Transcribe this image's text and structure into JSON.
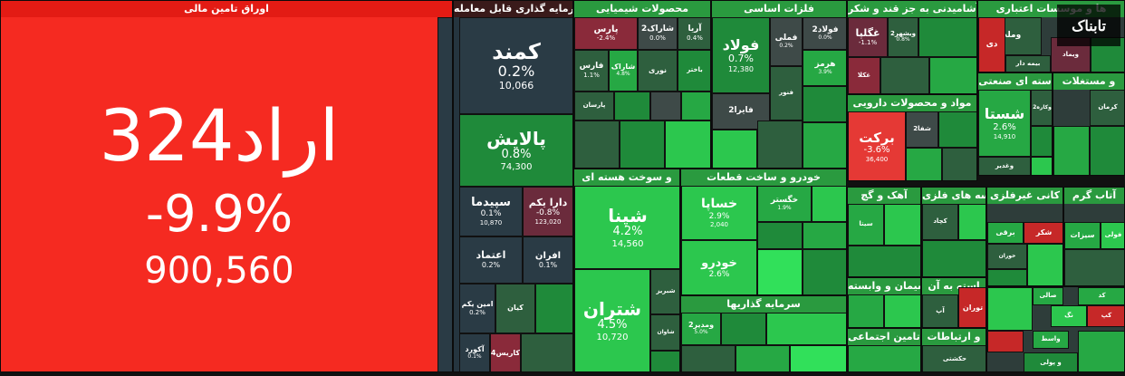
{
  "sectors": {
    "s1": "اوراق تامین مالی",
    "s2": "سرمایه گذاری قابل معامله",
    "s3": "محصولات شیمیایی",
    "s4": "فلزات اساسی",
    "s5": "آشامیدنی به جز قند و شکر",
    "s6": "ها و موسسات اعتباری",
    "s7": "و مستغلات",
    "s8": "سته ای صنعتی",
    "s9": "مواد و محصولات دارویی",
    "s10": "و سوخت هسته ای",
    "s11": "خودرو و ساخت قطعات",
    "s12": "آهک و گچ",
    "s13": "سه های فلزی",
    "s14": "کانی غیرفلزی",
    "s15": "سرمایه گذاریها",
    "s16": "سیمان و وابسته",
    "s17": "استه به آن",
    "s18": "تامین اجتماعی",
    "s19": "و ارتباطات"
  },
  "tiles": {
    "arad": {
      "sym": "اراد324",
      "pct": "-9.9%",
      "val": "900,560"
    },
    "kamand": {
      "sym": "کمند",
      "pct": "0.2%",
      "val": "10,066"
    },
    "palayesh": {
      "sym": "پالایش",
      "pct": "0.8%",
      "val": "74,300"
    },
    "sepidma": {
      "sym": "سپیدما",
      "pct": "0.1%",
      "val": "10,870"
    },
    "darayekom": {
      "sym": "دارا یکم",
      "pct": "-0.8%",
      "val": "123,020"
    },
    "etemad": {
      "sym": "اعتماد",
      "pct": "0.2%"
    },
    "afran": {
      "sym": "افران",
      "pct": "0.1%"
    },
    "aminyekom": {
      "sym": "امین یکم",
      "pct": "0.2%"
    },
    "kian": {
      "sym": "کیان"
    },
    "akord": {
      "sym": "آکورد",
      "pct": "0.1%"
    },
    "karis": {
      "sym": "کاریس4"
    },
    "pars": {
      "sym": "پارس",
      "pct": "-2.4%"
    },
    "sharak2": {
      "sym": "شاراک2",
      "pct": "0.0%"
    },
    "aria": {
      "sym": "آریا",
      "pct": "0.4%"
    },
    "fars": {
      "sym": "فارس",
      "pct": "1.1%"
    },
    "sharak": {
      "sym": "شاراک",
      "pct": "4.8%"
    },
    "noori": {
      "sym": "نوری"
    },
    "bakhter": {
      "sym": "باختر"
    },
    "parsan": {
      "sym": "پارسان"
    },
    "foolad": {
      "sym": "فولاد",
      "pct": "0.7%",
      "val": "12,380"
    },
    "fameli": {
      "sym": "فملی",
      "pct": "0.2%"
    },
    "foolad2": {
      "sym": "فولاد2",
      "pct": "0.0%"
    },
    "hormoz": {
      "sym": "هرمز",
      "pct": "3.9%"
    },
    "fanvar": {
      "sym": "فنور"
    },
    "fayra2": {
      "sym": "فایرا2"
    },
    "ghgolpa": {
      "sym": "غگلپا",
      "pct": "-1.1%"
    },
    "vibshahr": {
      "sym": "ویشهر2",
      "pct": "0.8%"
    },
    "ghkola": {
      "sym": "غکلا"
    },
    "vmelat": {
      "sym": "وملت"
    },
    "dey": {
      "sym": "دی"
    },
    "vimad": {
      "sym": "ویماد"
    },
    "bimedar": {
      "sym": "بیمه دار"
    },
    "vsapa": {
      "sym": "وساپا"
    },
    "shasta": {
      "sym": "شستا",
      "pct": "2.6%",
      "val": "14,910"
    },
    "vkharazm": {
      "sym": "وکاره2"
    },
    "kerman": {
      "sym": "کرمان"
    },
    "vghadir": {
      "sym": "وغدیر"
    },
    "barekat": {
      "sym": "برکت",
      "pct": "-3.6%",
      "val": "36,400"
    },
    "shafa": {
      "sym": "شفا2"
    },
    "shepna": {
      "sym": "شپنا",
      "pct": "4.2%",
      "val": "14,560"
    },
    "shetran": {
      "sym": "شتران",
      "pct": "4.5%",
      "val": "10,720"
    },
    "shabriz": {
      "sym": "شبریز"
    },
    "shavan": {
      "sym": "شاوان"
    },
    "khesapa": {
      "sym": "خساپا",
      "pct": "2.9%",
      "val": "2,040"
    },
    "khgostar": {
      "sym": "خگستر",
      "pct": "1.9%"
    },
    "khodro": {
      "sym": "خودرو",
      "pct": "2.6%"
    },
    "vmadyar": {
      "sym": "ومدیر2",
      "pct": "5.0%"
    },
    "sita": {
      "sym": "سیتا"
    },
    "kchad": {
      "sym": "کچاد"
    },
    "shakar": {
      "sym": "شکر"
    },
    "barqi": {
      "sym": "برقی"
    },
    "khoran": {
      "sym": "خوران"
    },
    "tooran": {
      "sym": "توران"
    },
    "ab": {
      "sym": "آپ"
    },
    "hakshti": {
      "sym": "حکشتی"
    },
    "zeytoon": {
      "sym": "سیزات"
    },
    "felezi": {
      "sym": "فولی"
    },
    "atabgar": {
      "sym": "آتاب گرم"
    },
    "sanat": {
      "sym": "صالی"
    },
    "nang": {
      "sym": "نگ"
    },
    "kokd": {
      "sym": "کد"
    },
    "vaset": {
      "sym": "واسط"
    },
    "pooli": {
      "sym": "و پولی"
    },
    "kap": {
      "sym": "کپ"
    },
    "dhi": {
      "sym": "دی"
    }
  },
  "watermark": "تابناک",
  "colors": {
    "positive": "#2cc74e",
    "negative": "#e53935",
    "neutral": "#3e4a48"
  }
}
